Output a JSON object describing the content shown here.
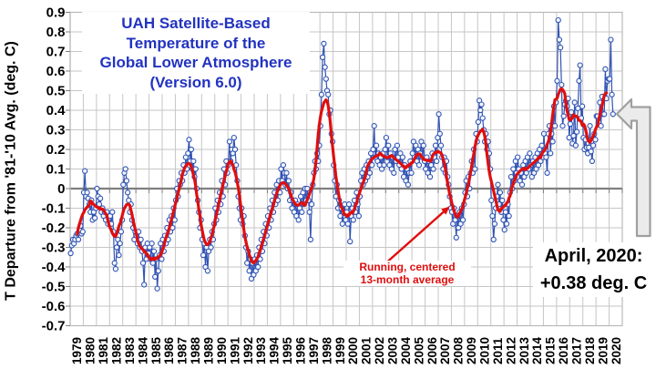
{
  "chart": {
    "title_lines": [
      "UAH Satellite-Based",
      "Temperature of the",
      "Global Lower Atmosphere",
      "(Version 6.0)"
    ],
    "y_axis_title": "T Departure from '81-'10 Avg. (deg. C)",
    "annotation_line1": "Running, centered",
    "annotation_line2": "13-month average",
    "latest_label_line1": "April, 2020:",
    "latest_label_line2": "+0.38 deg. C"
  },
  "colors": {
    "title_blue": "#2233c0",
    "monthly_line_blue": "#3053b4",
    "marker_fill": "#f2f6fc",
    "running_avg_red": "#e00e0e",
    "annotation_red": "#e00e0e",
    "grid_gray": "#c6c6c6",
    "border_gray": "#b9b9b9",
    "zero_axis_gray": "#7f7f7f",
    "arrow_fill": "#ebebeb",
    "arrow_stroke": "#9f9f9f",
    "text_black": "#000000"
  },
  "chart_data": {
    "type": "line",
    "title": "UAH Satellite-Based Temperature of the Global Lower Atmosphere (Version 6.0)",
    "xlabel": "",
    "ylabel": "T Departure from '81-'10 Avg. (deg. C)",
    "ylim": [
      -0.7,
      0.9
    ],
    "ytick_step": 0.1,
    "grid": true,
    "legend": "none",
    "y_tick_labels": [
      "0.9",
      "0.8",
      "0.7",
      "0.6",
      "0.5",
      "0.4",
      "0.3",
      "0.2",
      "0.1",
      "0",
      "-0.1",
      "-0.2",
      "-0.3",
      "-0.4",
      "-0.5",
      "-0.6",
      "-0.7"
    ],
    "x_tick_labels": [
      "1979",
      "1980",
      "1981",
      "1982",
      "1983",
      "1984",
      "1985",
      "1986",
      "1987",
      "1988",
      "1989",
      "1990",
      "1991",
      "1992",
      "1993",
      "1994",
      "1995",
      "1996",
      "1997",
      "1998",
      "1999",
      "2000",
      "2001",
      "2002",
      "2003",
      "2004",
      "2005",
      "2006",
      "2007",
      "2008",
      "2009",
      "2010",
      "2011",
      "2012",
      "2013",
      "2014",
      "2015",
      "2016",
      "2017",
      "2018",
      "2019",
      "2020"
    ],
    "start": "1979-01",
    "end": "2020-04",
    "latest_point": {
      "month": "April, 2020",
      "value_degC": 0.38
    },
    "series": [
      {
        "name": "Monthly global lower-troposphere temperature anomaly (deg. C)",
        "style": "line+open-circle-markers",
        "color": "#3053b4"
      },
      {
        "name": "Running, centered 13-month average",
        "style": "smooth-line",
        "color": "#e00e0e",
        "derived_from": "13-month centered mean of the monthly series"
      }
    ],
    "monthly_values_by_year": {
      "1979": [
        -0.33,
        -0.29,
        -0.26,
        -0.28,
        -0.26,
        -0.24,
        -0.23,
        -0.26,
        -0.21,
        -0.19,
        -0.23,
        -0.22
      ],
      "1980": [
        -0.02,
        0.09,
        -0.04,
        -0.02,
        -0.05,
        -0.08,
        -0.12,
        -0.06,
        -0.16,
        -0.12,
        -0.15,
        -0.1
      ],
      "1981": [
        0.0,
        -0.04,
        -0.08,
        -0.05,
        -0.12,
        -0.1,
        -0.14,
        -0.12,
        -0.16,
        -0.12,
        -0.18,
        -0.15
      ],
      "1982": [
        -0.14,
        -0.18,
        -0.12,
        -0.22,
        -0.38,
        -0.41,
        -0.3,
        -0.26,
        -0.34,
        -0.28,
        -0.22,
        -0.16
      ],
      "1983": [
        0.02,
        0.08,
        0.1,
        0.04,
        -0.02,
        -0.06,
        -0.12,
        -0.08,
        -0.16,
        -0.2,
        -0.26,
        -0.22
      ],
      "1984": [
        -0.24,
        -0.28,
        -0.22,
        -0.3,
        -0.26,
        -0.32,
        -0.38,
        -0.49,
        -0.3,
        -0.36,
        -0.28,
        -0.33
      ],
      "1985": [
        -0.3,
        -0.36,
        -0.28,
        -0.38,
        -0.32,
        -0.45,
        -0.36,
        -0.51,
        -0.42,
        -0.34,
        -0.28,
        -0.36
      ],
      "1986": [
        -0.26,
        -0.32,
        -0.24,
        -0.28,
        -0.2,
        -0.26,
        -0.16,
        -0.22,
        -0.14,
        -0.2,
        -0.1,
        -0.16
      ],
      "1987": [
        -0.06,
        0.0,
        -0.04,
        0.04,
        0.02,
        0.08,
        0.04,
        0.12,
        0.08,
        0.16,
        0.1,
        0.18
      ],
      "1988": [
        0.25,
        0.14,
        0.2,
        0.1,
        0.14,
        0.06,
        0.1,
        0.0,
        -0.06,
        -0.12,
        -0.2,
        -0.16
      ],
      "1989": [
        -0.26,
        -0.34,
        -0.28,
        -0.4,
        -0.3,
        -0.42,
        -0.32,
        -0.26,
        -0.3,
        -0.22,
        -0.26,
        -0.18
      ],
      "1990": [
        -0.1,
        -0.16,
        -0.06,
        -0.12,
        -0.02,
        -0.08,
        0.04,
        -0.04,
        0.1,
        0.02,
        0.14,
        0.08
      ],
      "1991": [
        0.12,
        0.24,
        0.14,
        0.2,
        0.18,
        0.26,
        0.2,
        0.12,
        0.04,
        -0.04,
        -0.1,
        -0.16
      ],
      "1992": [
        -0.1,
        -0.18,
        -0.14,
        -0.24,
        -0.3,
        -0.38,
        -0.32,
        -0.42,
        -0.36,
        -0.46,
        -0.38,
        -0.44
      ],
      "1993": [
        -0.36,
        -0.42,
        -0.34,
        -0.4,
        -0.3,
        -0.36,
        -0.26,
        -0.32,
        -0.22,
        -0.28,
        -0.18,
        -0.24
      ],
      "1994": [
        -0.14,
        -0.2,
        -0.1,
        -0.16,
        -0.06,
        -0.12,
        -0.02,
        -0.08,
        0.02,
        -0.06,
        0.04,
        -0.02
      ],
      "1995": [
        0.1,
        0.04,
        0.12,
        0.08,
        0.02,
        0.08,
        0.0,
        0.04,
        -0.06,
        -0.02,
        -0.1,
        -0.06
      ],
      "1996": [
        -0.12,
        -0.06,
        -0.14,
        -0.08,
        -0.16,
        -0.1,
        -0.04,
        -0.12,
        -0.02,
        -0.08,
        0.0,
        -0.06
      ],
      "1997": [
        0.0,
        -0.06,
        -0.12,
        -0.26,
        -0.08,
        0.02,
        0.08,
        0.14,
        0.1,
        0.18,
        0.14,
        0.22
      ],
      "1998": [
        0.32,
        0.48,
        0.67,
        0.74,
        0.62,
        0.56,
        0.5,
        0.48,
        0.38,
        0.4,
        0.28,
        0.24
      ],
      "1999": [
        0.12,
        0.04,
        -0.04,
        0.02,
        -0.1,
        -0.06,
        -0.14,
        -0.1,
        -0.18,
        -0.12,
        -0.08,
        -0.16
      ],
      "2000": [
        -0.12,
        -0.18,
        -0.08,
        -0.27,
        -0.14,
        -0.1,
        -0.16,
        -0.06,
        -0.12,
        -0.02,
        -0.08,
        -0.14
      ],
      "2001": [
        -0.04,
        0.04,
        0.08,
        0.02,
        0.1,
        0.04,
        0.12,
        0.06,
        0.14,
        0.08,
        0.18,
        0.12
      ],
      "2002": [
        0.2,
        0.32,
        0.16,
        0.22,
        0.14,
        0.18,
        0.12,
        0.16,
        0.1,
        0.18,
        0.12,
        0.2
      ],
      "2003": [
        0.26,
        0.16,
        0.22,
        0.12,
        0.18,
        0.1,
        0.16,
        0.08,
        0.2,
        0.14,
        0.22,
        0.16
      ],
      "2004": [
        0.12,
        0.18,
        0.1,
        0.16,
        0.06,
        0.12,
        0.04,
        0.1,
        0.02,
        0.08,
        0.14,
        0.08
      ],
      "2005": [
        0.18,
        0.24,
        0.16,
        0.22,
        0.14,
        0.2,
        0.12,
        0.18,
        0.24,
        0.16,
        0.22,
        0.14
      ],
      "2006": [
        0.1,
        0.16,
        0.08,
        0.14,
        0.06,
        0.12,
        0.18,
        0.1,
        0.16,
        0.22,
        0.14,
        0.26
      ],
      "2007": [
        0.38,
        0.28,
        0.22,
        0.16,
        0.1,
        0.16,
        0.08,
        0.14,
        0.06,
        0.02,
        -0.04,
        -0.1
      ],
      "2008": [
        -0.12,
        -0.18,
        -0.1,
        -0.16,
        -0.25,
        -0.14,
        -0.2,
        -0.12,
        -0.18,
        -0.1,
        -0.16,
        -0.08
      ],
      "2009": [
        -0.02,
        0.04,
        -0.04,
        0.06,
        0.0,
        0.08,
        0.14,
        0.08,
        0.2,
        0.1,
        0.28,
        0.24
      ],
      "2010": [
        0.34,
        0.45,
        0.4,
        0.43,
        0.36,
        0.3,
        0.24,
        0.28,
        0.2,
        0.24,
        0.18,
        0.1
      ],
      "2011": [
        -0.06,
        -0.14,
        -0.26,
        -0.18,
        -0.1,
        -0.04,
        0.02,
        -0.08,
        -0.02,
        -0.12,
        -0.06,
        -0.16
      ],
      "2012": [
        -0.21,
        -0.12,
        -0.18,
        -0.08,
        -0.14,
        -0.02,
        0.06,
        0.0,
        0.1,
        0.04,
        0.14,
        0.08
      ],
      "2013": [
        0.16,
        0.1,
        0.04,
        0.08,
        0.02,
        0.12,
        0.06,
        0.14,
        0.08,
        0.16,
        0.1,
        0.18
      ],
      "2014": [
        0.12,
        0.06,
        0.14,
        0.08,
        0.16,
        0.1,
        0.18,
        0.12,
        0.2,
        0.14,
        0.22,
        0.16
      ],
      "2015": [
        0.28,
        0.18,
        0.16,
        0.08,
        0.28,
        0.32,
        0.18,
        0.28,
        0.24,
        0.42,
        0.32,
        0.44
      ],
      "2016": [
        0.55,
        0.86,
        0.76,
        0.72,
        0.53,
        0.32,
        0.37,
        0.43,
        0.45,
        0.42,
        0.46,
        0.26
      ],
      "2017": [
        0.33,
        0.39,
        0.23,
        0.27,
        0.44,
        0.22,
        0.29,
        0.41,
        0.55,
        0.63,
        0.36,
        0.42
      ],
      "2018": [
        0.26,
        0.2,
        0.25,
        0.21,
        0.18,
        0.21,
        0.32,
        0.19,
        0.14,
        0.22,
        0.28,
        0.25
      ],
      "2019": [
        0.37,
        0.37,
        0.34,
        0.44,
        0.32,
        0.47,
        0.38,
        0.38,
        0.61,
        0.46,
        0.55,
        0.56
      ],
      "2020": [
        0.56,
        0.76,
        0.48,
        0.38
      ]
    }
  }
}
